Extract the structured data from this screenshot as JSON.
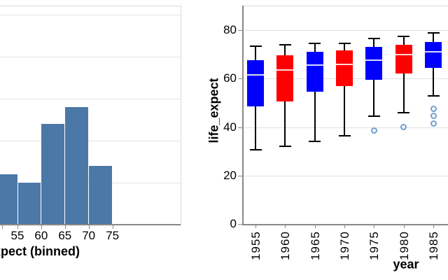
{
  "chart_data": [
    {
      "type": "bar",
      "subtype": "histogram",
      "title": "",
      "xlabel": "life_expect (binned)",
      "ylabel": "",
      "grid": true,
      "gridline_step_counts": 10,
      "bar_color": "#4c78a8",
      "x_ticks": [
        55,
        60,
        65,
        70,
        75
      ],
      "x_tick_labels": [
        "55",
        "60",
        "65",
        "70",
        "75"
      ],
      "bins": [
        {
          "x0": 50,
          "x1": 55,
          "count": 12
        },
        {
          "x0": 55,
          "x1": 60,
          "count": 10
        },
        {
          "x0": 60,
          "x1": 65,
          "count": 24
        },
        {
          "x0": 65,
          "x1": 70,
          "count": 28
        },
        {
          "x0": 70,
          "x1": 75,
          "count": 14
        }
      ]
    },
    {
      "type": "boxplot",
      "title": "",
      "xlabel": "year",
      "ylabel": "life_expect",
      "grid": true,
      "legend": "none",
      "ylim": [
        0,
        87
      ],
      "y_ticks": [
        0,
        20,
        40,
        60,
        80
      ],
      "y_tick_labels": [
        "0",
        "20",
        "40",
        "60",
        "80"
      ],
      "categories": [
        "1955",
        "1960",
        "1965",
        "1970",
        "1975",
        "1980",
        "1985"
      ],
      "colors": {
        "box_blue": "#0000ff",
        "box_red": "#ff0000",
        "whisker": "#000000",
        "median": "#ffffff",
        "outlier_stroke": "#6f9ed3",
        "axis": "#888888",
        "gridline": "#e2e2e2"
      },
      "series": [
        {
          "year": "1955",
          "color": "#0000ff",
          "low": 30.5,
          "q1": 48.5,
          "median": 61.5,
          "q3": 67.5,
          "high": 73.5,
          "outliers": []
        },
        {
          "year": "1960",
          "color": "#ff0000",
          "low": 32,
          "q1": 50.5,
          "median": 63.5,
          "q3": 69.5,
          "high": 74,
          "outliers": []
        },
        {
          "year": "1965",
          "color": "#0000ff",
          "low": 34,
          "q1": 54.5,
          "median": 65.5,
          "q3": 71,
          "high": 74.5,
          "outliers": []
        },
        {
          "year": "1970",
          "color": "#ff0000",
          "low": 36.5,
          "q1": 57,
          "median": 66,
          "q3": 71.5,
          "high": 74.5,
          "outliers": []
        },
        {
          "year": "1975",
          "color": "#0000ff",
          "low": 44.5,
          "q1": 59.5,
          "median": 67.5,
          "q3": 73,
          "high": 76.5,
          "outliers": [
            38.5
          ]
        },
        {
          "year": "1980",
          "color": "#ff0000",
          "low": 46,
          "q1": 62,
          "median": 70,
          "q3": 74,
          "high": 77.5,
          "outliers": [
            40
          ]
        },
        {
          "year": "1985",
          "color": "#0000ff",
          "low": 53,
          "q1": 64.5,
          "median": 71,
          "q3": 75,
          "high": 79,
          "outliers": [
            41.5,
            44.5,
            47.5
          ]
        }
      ]
    }
  ]
}
